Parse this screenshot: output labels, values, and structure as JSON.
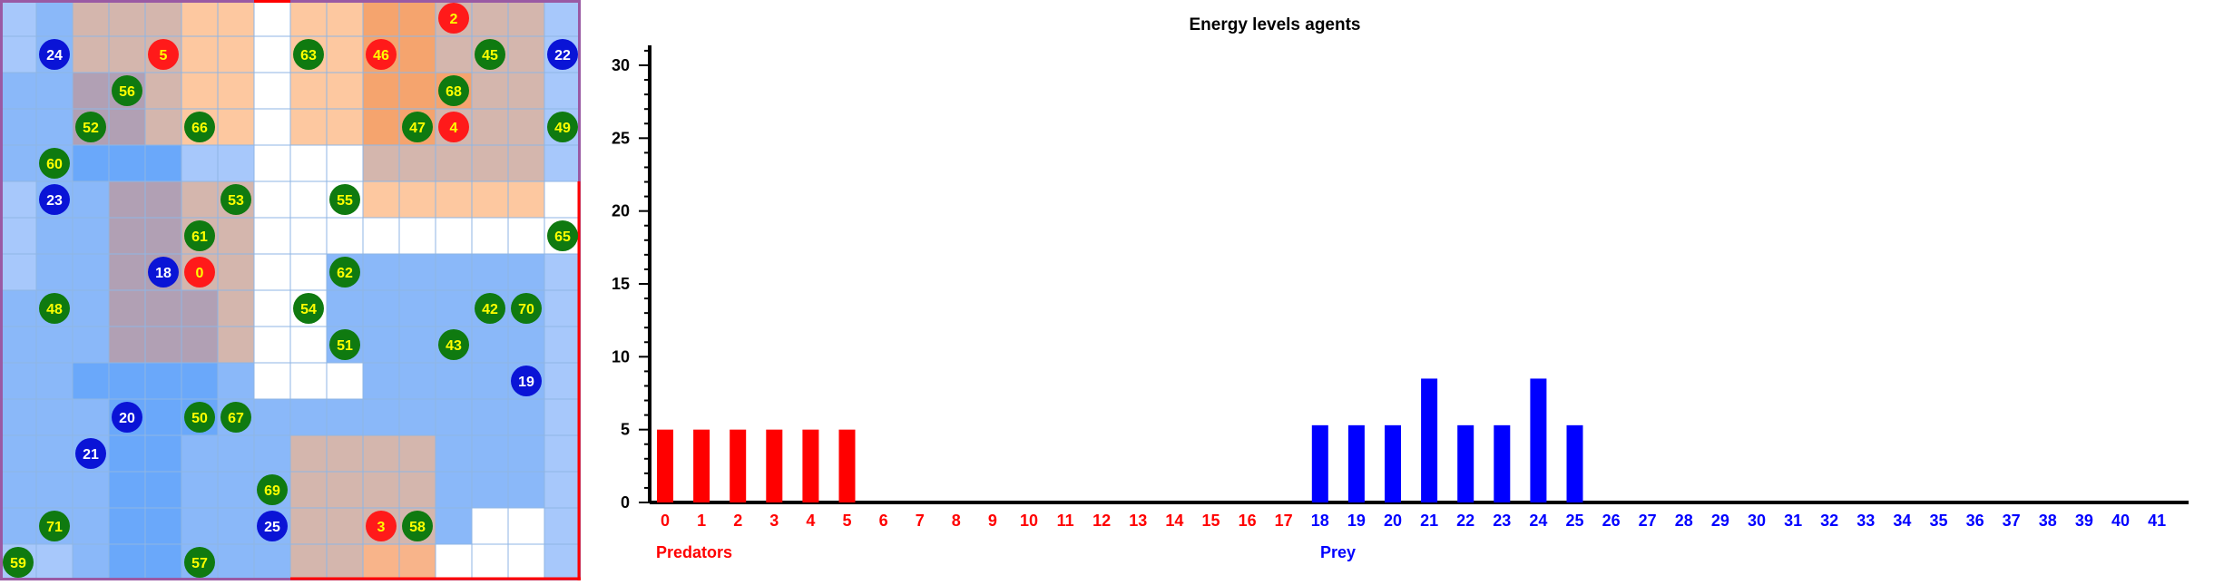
{
  "grid": {
    "cols": 16,
    "rows": 16,
    "colors": {
      "W": "#ffffff",
      "A": "#a7c8fb",
      "B": "#8ab8f9",
      "C": "#6aa8fa",
      "P": "#fdc8a0",
      "Q": "#f8b48a",
      "R": "#f5a46e",
      "M": "#d4b6ad",
      "N": "#c3a3a8",
      "G": "#b1a0b4",
      "line": "#8fb6e4",
      "border": "#9a5aa4",
      "accent": "#ff0000"
    },
    "cell_map": [
      "ABMMMPPWPPRRMMMA",
      "ABMMMPPWPPRRMMMA",
      "BBGGMPPWPPRRRMMA",
      "BBGGMPPWPPRRMMMA",
      "BBCCCAAWWWMMMMMA",
      "ABBGGMMWWWPPPPPW",
      "ABBGGMMWWWWWWWWW",
      "ABBGGMMWWBBBBBBA",
      "BBBGGGMWWBBBBBBA",
      "BBBGGGMWWBBBBBBA",
      "BBCCCCBWWWBBBBBA",
      "BBBCCCBBBBBBBBBA",
      "BBBCCBBBMMMMBBBA",
      "BBBCCBBBMMMMBBBA",
      "BBBCCBBBMMMMBWWA",
      "AABCCBBBMMQQWWWA"
    ],
    "agents": [
      {
        "id": "2",
        "type": "predator",
        "col": 12,
        "row": 0
      },
      {
        "id": "24",
        "type": "prey",
        "col": 1,
        "row": 1
      },
      {
        "id": "5",
        "type": "predator",
        "col": 4,
        "row": 1
      },
      {
        "id": "63",
        "type": "plant",
        "col": 8,
        "row": 1
      },
      {
        "id": "46",
        "type": "predator",
        "col": 10,
        "row": 1
      },
      {
        "id": "45",
        "type": "plant",
        "col": 13,
        "row": 1
      },
      {
        "id": "22",
        "type": "prey",
        "col": 15,
        "row": 1
      },
      {
        "id": "56",
        "type": "plant",
        "col": 3,
        "row": 2
      },
      {
        "id": "68",
        "type": "plant",
        "col": 12,
        "row": 2
      },
      {
        "id": "52",
        "type": "plant",
        "col": 2,
        "row": 3
      },
      {
        "id": "66",
        "type": "plant",
        "col": 5,
        "row": 3
      },
      {
        "id": "47",
        "type": "plant",
        "col": 11,
        "row": 3
      },
      {
        "id": "4",
        "type": "predator",
        "col": 12,
        "row": 3
      },
      {
        "id": "49",
        "type": "plant",
        "col": 15,
        "row": 3
      },
      {
        "id": "60",
        "type": "plant",
        "col": 1,
        "row": 4
      },
      {
        "id": "23",
        "type": "prey",
        "col": 1,
        "row": 5
      },
      {
        "id": "53",
        "type": "plant",
        "col": 6,
        "row": 5
      },
      {
        "id": "55",
        "type": "plant",
        "col": 9,
        "row": 5
      },
      {
        "id": "61",
        "type": "plant",
        "col": 5,
        "row": 6
      },
      {
        "id": "65",
        "type": "plant",
        "col": 15,
        "row": 6
      },
      {
        "id": "18",
        "type": "prey",
        "col": 4,
        "row": 7
      },
      {
        "id": "0",
        "type": "predator",
        "col": 5,
        "row": 7
      },
      {
        "id": "62",
        "type": "plant",
        "col": 9,
        "row": 7
      },
      {
        "id": "48",
        "type": "plant",
        "col": 1,
        "row": 8
      },
      {
        "id": "54",
        "type": "plant",
        "col": 8,
        "row": 8
      },
      {
        "id": "42",
        "type": "plant",
        "col": 13,
        "row": 8
      },
      {
        "id": "70",
        "type": "plant",
        "col": 14,
        "row": 8
      },
      {
        "id": "51",
        "type": "plant",
        "col": 9,
        "row": 9
      },
      {
        "id": "43",
        "type": "plant",
        "col": 12,
        "row": 9
      },
      {
        "id": "19",
        "type": "prey",
        "col": 14,
        "row": 10
      },
      {
        "id": "20",
        "type": "prey",
        "col": 3,
        "row": 11
      },
      {
        "id": "50",
        "type": "plant",
        "col": 5,
        "row": 11
      },
      {
        "id": "67",
        "type": "plant",
        "col": 6,
        "row": 11
      },
      {
        "id": "21",
        "type": "prey",
        "col": 2,
        "row": 12
      },
      {
        "id": "69",
        "type": "plant",
        "col": 7,
        "row": 13
      },
      {
        "id": "71",
        "type": "plant",
        "col": 1,
        "row": 14
      },
      {
        "id": "25",
        "type": "prey",
        "col": 7,
        "row": 14
      },
      {
        "id": "3",
        "type": "predator",
        "col": 10,
        "row": 14
      },
      {
        "id": "58",
        "type": "plant",
        "col": 11,
        "row": 14
      },
      {
        "id": "59",
        "type": "plant",
        "col": 0,
        "row": 15
      },
      {
        "id": "57",
        "type": "plant",
        "col": 5,
        "row": 15
      }
    ],
    "agent_colors": {
      "predator": {
        "fill": "#ff1a1a",
        "text": "#ffff00"
      },
      "prey": {
        "fill": "#0a14d6",
        "text": "#ffffff"
      },
      "plant": {
        "fill": "#0f7a10",
        "text": "#ffff00"
      }
    }
  },
  "chart_data": {
    "type": "bar",
    "title": "Energy levels agents",
    "categories": [
      "0",
      "1",
      "2",
      "3",
      "4",
      "5",
      "6",
      "7",
      "8",
      "9",
      "10",
      "11",
      "12",
      "13",
      "14",
      "15",
      "16",
      "17",
      "18",
      "19",
      "20",
      "21",
      "22",
      "23",
      "24",
      "25",
      "26",
      "27",
      "28",
      "29",
      "30",
      "31",
      "32",
      "33",
      "34",
      "35",
      "36",
      "37",
      "38",
      "39",
      "40",
      "41"
    ],
    "series": [
      {
        "name": "Predators",
        "color": "#ff0000",
        "values": [
          5,
          5,
          5,
          5,
          5,
          5,
          0,
          0,
          0,
          0,
          0,
          0,
          0,
          0,
          0,
          0,
          0,
          0,
          null,
          null,
          null,
          null,
          null,
          null,
          null,
          null,
          null,
          null,
          null,
          null,
          null,
          null,
          null,
          null,
          null,
          null,
          null,
          null,
          null,
          null,
          null,
          null
        ]
      },
      {
        "name": "Prey",
        "color": "#0000ff",
        "values": [
          null,
          null,
          null,
          null,
          null,
          null,
          null,
          null,
          null,
          null,
          null,
          null,
          null,
          null,
          null,
          null,
          null,
          null,
          5.3,
          5.3,
          5.3,
          8.5,
          5.3,
          5.3,
          8.5,
          5.3,
          0,
          0,
          0,
          0,
          0,
          0,
          0,
          0,
          0,
          0,
          0,
          0,
          0,
          0,
          0,
          0
        ]
      }
    ],
    "yticks": [
      0,
      5,
      10,
      15,
      20,
      25,
      30
    ],
    "ylim": [
      0,
      31
    ],
    "grid": false,
    "legend_placement": "below-axis"
  }
}
